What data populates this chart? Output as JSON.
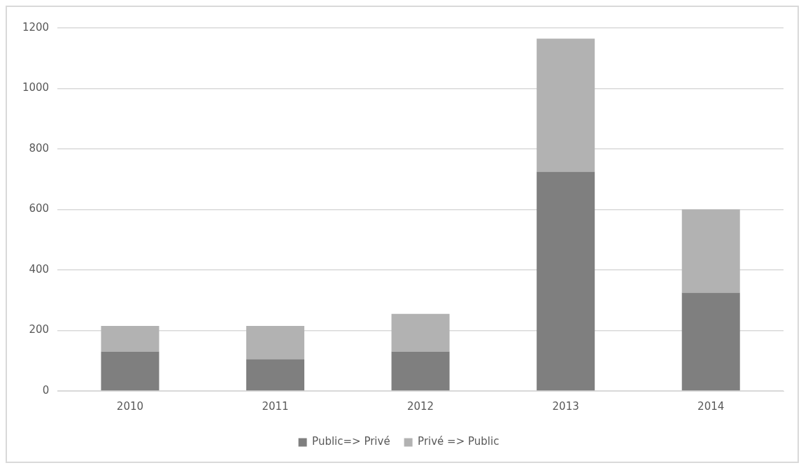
{
  "chart_data": {
    "type": "bar",
    "categories": [
      "2010",
      "2011",
      "2012",
      "2013",
      "2014"
    ],
    "stacked": true,
    "series": [
      {
        "name": "Public=> Privé",
        "color": "#7f7f7f",
        "values": [
          130,
          105,
          130,
          725,
          325
        ]
      },
      {
        "name": "Privé => Public",
        "color": "#b2b2b2",
        "values": [
          85,
          110,
          125,
          440,
          275
        ]
      }
    ],
    "ylim": [
      0,
      1200
    ],
    "yticks": [
      0,
      200,
      400,
      600,
      800,
      1000,
      1200
    ],
    "grid": "y",
    "legend": "bottom"
  }
}
